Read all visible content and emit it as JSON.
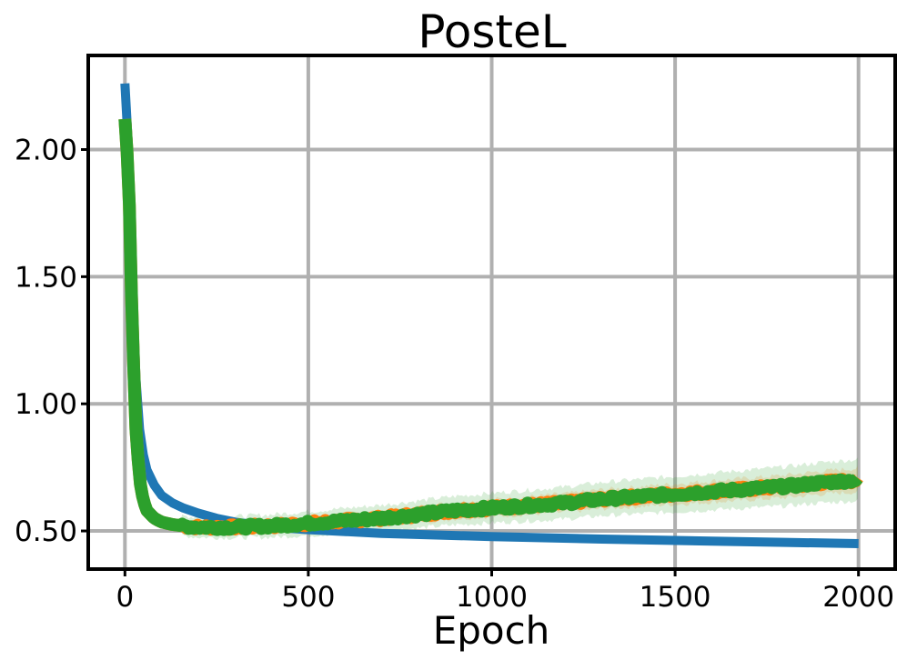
{
  "chart_data": {
    "type": "line",
    "title": "PosteL",
    "xlabel": "Epoch",
    "ylabel": "",
    "xlim": [
      -100,
      2100
    ],
    "ylim": [
      0.35,
      2.37
    ],
    "xticks": [
      0,
      500,
      1000,
      1500,
      2000
    ],
    "xtick_labels": [
      "0",
      "500",
      "1000",
      "1500",
      "2000"
    ],
    "yticks": [
      0.5,
      1.0,
      1.5,
      2.0
    ],
    "ytick_labels": [
      "0.50",
      "1.00",
      "1.50",
      "2.00"
    ],
    "grid": true,
    "legend": "none",
    "series": [
      {
        "color": "#1f77b4",
        "x": [
          0,
          10,
          20,
          30,
          40,
          50,
          60,
          80,
          100,
          130,
          160,
          200,
          250,
          300,
          400,
          500,
          700,
          1000,
          1300,
          1600,
          1800,
          2000
        ],
        "y": [
          2.26,
          2.0,
          1.5,
          1.1,
          0.9,
          0.8,
          0.74,
          0.68,
          0.64,
          0.61,
          0.59,
          0.57,
          0.55,
          0.535,
          0.515,
          0.505,
          0.49,
          0.478,
          0.468,
          0.46,
          0.455,
          0.45
        ]
      },
      {
        "color": "#ff7f0e",
        "band": 0.02,
        "x": [
          0,
          10,
          20,
          30,
          40,
          50,
          60,
          80,
          100,
          130,
          160,
          200,
          250,
          300,
          400,
          500,
          600,
          700,
          800,
          900,
          1000,
          1100,
          1200,
          1300,
          1400,
          1500,
          1600,
          1700,
          1800,
          1900,
          2000
        ],
        "y": [
          2.12,
          1.9,
          1.3,
          0.9,
          0.7,
          0.62,
          0.58,
          0.55,
          0.535,
          0.525,
          0.52,
          0.515,
          0.515,
          0.515,
          0.52,
          0.53,
          0.54,
          0.55,
          0.565,
          0.58,
          0.59,
          0.6,
          0.61,
          0.625,
          0.635,
          0.645,
          0.655,
          0.665,
          0.675,
          0.69,
          0.7
        ]
      },
      {
        "color": "#2ca02c",
        "band": 0.035,
        "x": [
          0,
          10,
          20,
          30,
          40,
          50,
          60,
          80,
          100,
          130,
          160,
          200,
          250,
          300,
          400,
          500,
          600,
          700,
          800,
          900,
          1000,
          1100,
          1200,
          1300,
          1400,
          1500,
          1600,
          1700,
          1800,
          1900,
          2000
        ],
        "y": [
          2.12,
          1.9,
          1.3,
          0.9,
          0.7,
          0.62,
          0.58,
          0.55,
          0.535,
          0.525,
          0.52,
          0.515,
          0.515,
          0.515,
          0.52,
          0.53,
          0.54,
          0.55,
          0.565,
          0.58,
          0.59,
          0.6,
          0.61,
          0.625,
          0.635,
          0.645,
          0.655,
          0.665,
          0.675,
          0.69,
          0.7
        ]
      }
    ]
  }
}
